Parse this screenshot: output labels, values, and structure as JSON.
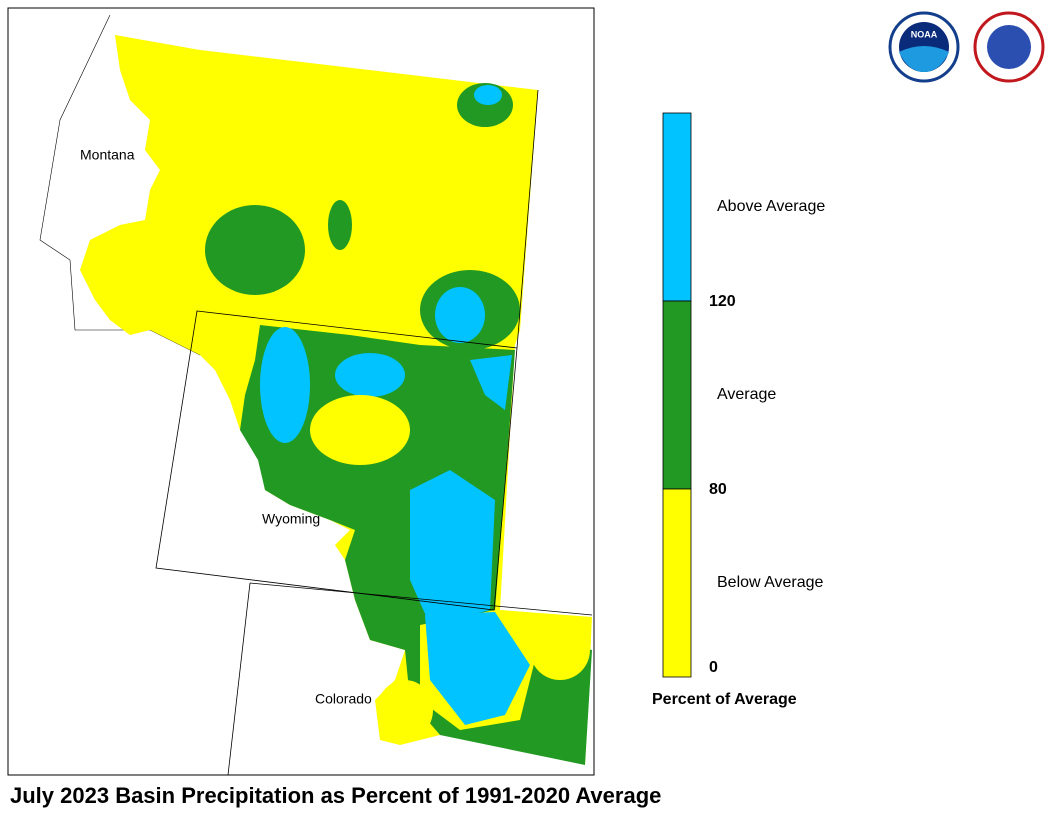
{
  "logos": {
    "noaa": "NOAA"
  },
  "map": {
    "labels": [
      "Montana",
      "Wyoming",
      "Colorado"
    ]
  },
  "legend": {
    "bands": [
      {
        "name": "Above Average",
        "color": "#00c3ff"
      },
      {
        "name": "Average",
        "color": "#229922"
      },
      {
        "name": "Below Average",
        "color": "#ffff00"
      }
    ],
    "ticks": [
      120,
      80,
      0
    ],
    "caption": "Percent of Average"
  },
  "title": "July 2023 Basin Precipitation as Percent of 1991-2020 Average"
}
